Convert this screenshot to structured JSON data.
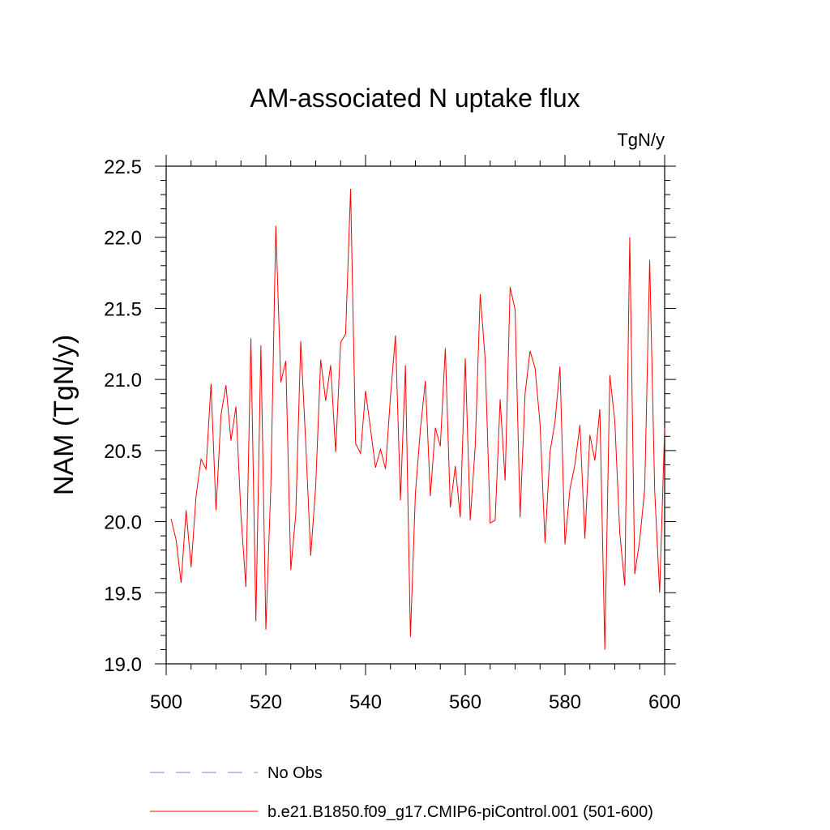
{
  "chart_data": {
    "type": "line",
    "title": "AM-associated N uptake flux",
    "units_label": "TgN/y",
    "ylabel": "NAM  (TgN/y)",
    "xlabel": "",
    "xlim": [
      500,
      600
    ],
    "ylim": [
      19.0,
      22.5
    ],
    "x_ticks": [
      "500",
      "520",
      "540",
      "560",
      "580",
      "600"
    ],
    "y_ticks": [
      "19.0",
      "19.5",
      "20.0",
      "20.5",
      "21.0",
      "21.5",
      "22.0",
      "22.5"
    ],
    "series": [
      {
        "name": "b.e21.B1850.f09_g17.CMIP6-piControl.001 (501-600)",
        "color": "#ff0000",
        "x_start": 501,
        "values": [
          20.02,
          19.87,
          19.57,
          20.08,
          19.68,
          20.18,
          20.44,
          20.37,
          20.97,
          20.08,
          20.75,
          20.96,
          20.57,
          20.81,
          20.05,
          19.54,
          21.29,
          19.3,
          21.24,
          19.24,
          20.25,
          22.08,
          20.98,
          21.13,
          19.66,
          20.05,
          21.27,
          20.55,
          19.76,
          20.25,
          21.14,
          20.85,
          21.1,
          20.49,
          21.26,
          21.32,
          22.34,
          20.55,
          20.48,
          20.92,
          20.65,
          20.38,
          20.51,
          20.37,
          20.88,
          21.31,
          20.15,
          21.1,
          19.19,
          20.2,
          20.65,
          20.99,
          20.18,
          20.66,
          20.53,
          21.22,
          20.1,
          20.39,
          20.03,
          21.15,
          20.01,
          20.53,
          21.6,
          21.14,
          19.99,
          20.01,
          20.86,
          20.29,
          21.65,
          21.49,
          20.03,
          20.9,
          21.2,
          21.08,
          20.69,
          19.85,
          20.49,
          20.7,
          21.09,
          19.84,
          20.23,
          20.4,
          20.68,
          19.88,
          20.61,
          20.43,
          20.79,
          19.1,
          21.03,
          20.71,
          19.92,
          19.55,
          22.0,
          19.63,
          19.87,
          20.23,
          21.84,
          20.22,
          19.5,
          20.66
        ]
      },
      {
        "name": "No Obs",
        "color": "#7f7fd0",
        "values": []
      }
    ],
    "legend": "bottom"
  }
}
